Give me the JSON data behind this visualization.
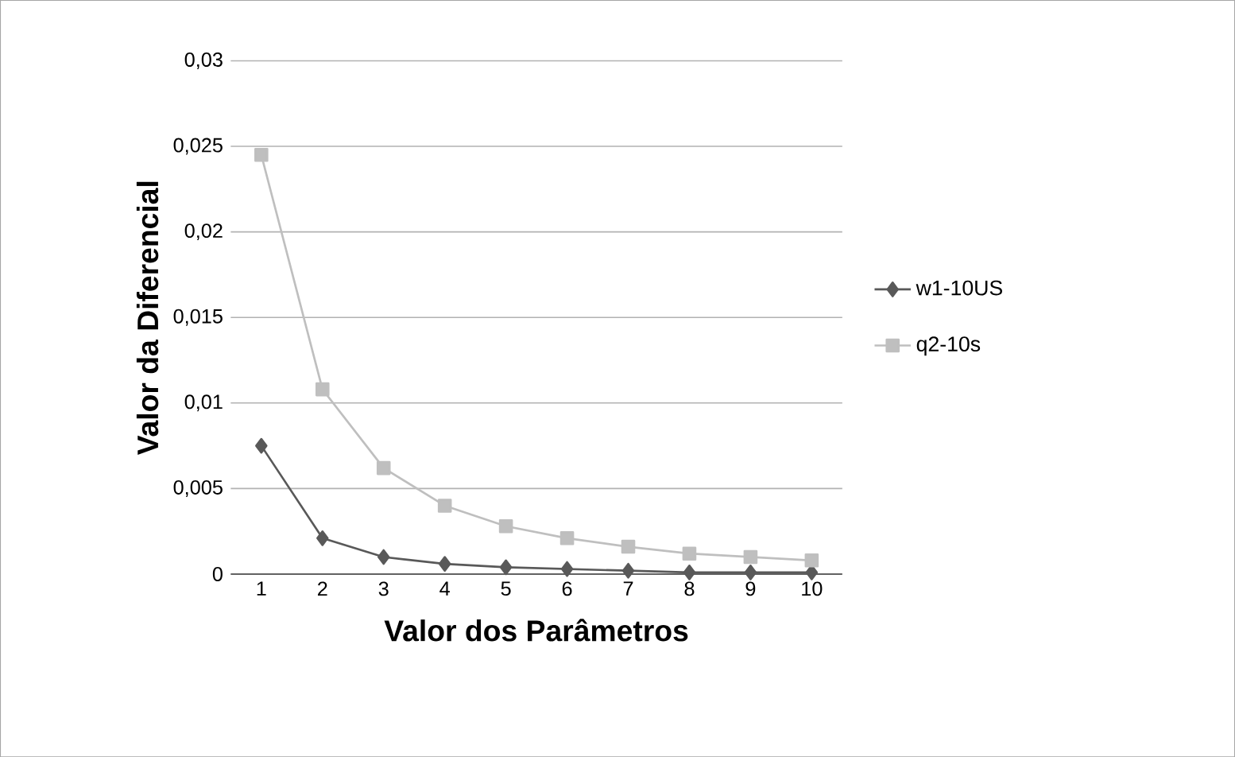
{
  "chart_data": {
    "type": "line",
    "xlabel": "Valor dos Parâmetros",
    "ylabel": "Valor da Diferencial",
    "categories": [
      "1",
      "2",
      "3",
      "4",
      "5",
      "6",
      "7",
      "8",
      "9",
      "10"
    ],
    "series": [
      {
        "name": "w1-10US",
        "color": "#595959",
        "marker": "diamond",
        "values": [
          0.0075,
          0.0021,
          0.001,
          0.0006,
          0.0004,
          0.0003,
          0.0002,
          0.0001,
          0.0001,
          0.0001
        ]
      },
      {
        "name": "q2-10s",
        "color": "#bfbfbf",
        "marker": "square",
        "values": [
          0.0245,
          0.0108,
          0.0062,
          0.004,
          0.0028,
          0.0021,
          0.0016,
          0.0012,
          0.001,
          0.0008
        ]
      }
    ],
    "ylim": [
      0,
      0.03
    ],
    "yticks": [
      {
        "value": 0,
        "label": "0"
      },
      {
        "value": 0.005,
        "label": "0,005"
      },
      {
        "value": 0.01,
        "label": "0,01"
      },
      {
        "value": 0.015,
        "label": "0,015"
      },
      {
        "value": 0.02,
        "label": "0,02"
      },
      {
        "value": 0.025,
        "label": "0,025"
      },
      {
        "value": 0.03,
        "label": "0,03"
      }
    ],
    "grid": "y",
    "legend": "right"
  }
}
